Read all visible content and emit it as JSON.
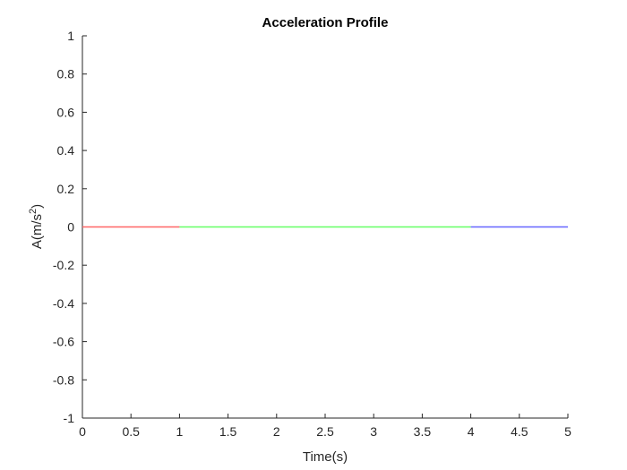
{
  "chart_data": {
    "type": "line",
    "title": "Acceleration Profile",
    "xlabel": "Time(s)",
    "ylabel_base": "A(m/s",
    "ylabel_sup": "2",
    "ylabel_close": ")",
    "xlim": [
      0,
      5
    ],
    "ylim": [
      -1,
      1
    ],
    "xticks": [
      0,
      0.5,
      1,
      1.5,
      2,
      2.5,
      3,
      3.5,
      4,
      4.5,
      5
    ],
    "xtick_labels": [
      "0",
      "0.5",
      "1",
      "1.5",
      "2",
      "2.5",
      "3",
      "3.5",
      "4",
      "4.5",
      "5"
    ],
    "yticks": [
      1,
      0.8,
      0.6,
      0.4,
      0.2,
      0,
      -0.2,
      -0.4,
      -0.6,
      -0.8,
      -1
    ],
    "ytick_labels": [
      "1",
      "0.8",
      "0.6",
      "0.4",
      "0.2",
      "0",
      "-0.2",
      "-0.4",
      "-0.6",
      "-0.8",
      "-1"
    ],
    "grid": false,
    "series": [
      {
        "color": "#ff6666",
        "x": [
          0,
          1
        ],
        "y": [
          0,
          0
        ]
      },
      {
        "color": "#66ff66",
        "x": [
          1,
          4
        ],
        "y": [
          0,
          0
        ]
      },
      {
        "color": "#6666ff",
        "x": [
          4,
          5
        ],
        "y": [
          0,
          0
        ]
      }
    ]
  }
}
